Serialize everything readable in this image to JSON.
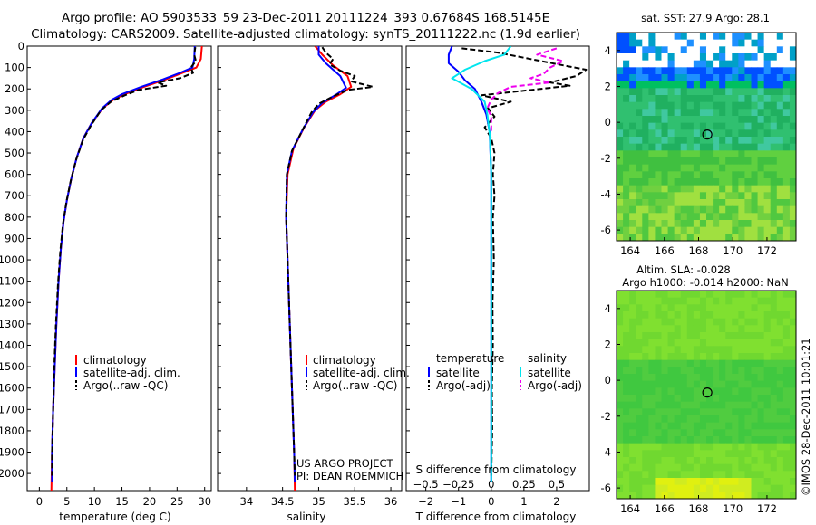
{
  "header": {
    "line1": "Argo profile: AO 5903533_59 23-Dec-2011 20111224_393 0.67684S 168.5145E",
    "line2": "Climatology: CARS2009. Satellite-adjusted climatology: synTS_20111222.nc (1.9d earlier)"
  },
  "colors": {
    "clim": "#ff0000",
    "sat": "#0000ff",
    "argo": "#000000",
    "sal_sat": "#00e5ee",
    "sal_argo": "#ee00ee"
  },
  "chart_data": [
    {
      "type": "line",
      "name": "temperature",
      "xlabel": "temperature (deg C)",
      "ylabel": "pressure",
      "xlim": [
        -2.2,
        31.2
      ],
      "ylim": [
        2080,
        0
      ],
      "xticks": [
        0,
        5,
        10,
        15,
        20,
        25,
        30
      ],
      "yticks": [
        0,
        100,
        200,
        300,
        400,
        500,
        600,
        700,
        800,
        900,
        1000,
        1100,
        1200,
        1300,
        1400,
        1500,
        1600,
        1700,
        1800,
        1900,
        2000
      ],
      "legend": [
        "climatology",
        "satellite-adj. clim.",
        "Argo(..raw -QC)"
      ],
      "series": [
        {
          "name": "climatology",
          "color": "clim",
          "dash": "",
          "points": [
            [
              29.5,
              0
            ],
            [
              29.3,
              60
            ],
            [
              28.5,
              100
            ],
            [
              26,
              125
            ],
            [
              23,
              155
            ],
            [
              19,
              190
            ],
            [
              15.5,
              225
            ],
            [
              13.5,
              250
            ],
            [
              11.5,
              290
            ],
            [
              9.5,
              360
            ],
            [
              8,
              430
            ],
            [
              6.8,
              520
            ],
            [
              5.8,
              620
            ],
            [
              5,
              720
            ],
            [
              4.4,
              820
            ],
            [
              3.9,
              950
            ],
            [
              3.5,
              1100
            ],
            [
              3.1,
              1300
            ],
            [
              2.8,
              1500
            ],
            [
              2.5,
              1700
            ],
            [
              2.3,
              1900
            ],
            [
              2.2,
              2080
            ]
          ]
        },
        {
          "name": "satellite-adj. clim.",
          "color": "sat",
          "dash": "",
          "points": [
            [
              28.2,
              0
            ],
            [
              28.1,
              60
            ],
            [
              27.8,
              100
            ],
            [
              25.5,
              125
            ],
            [
              22.5,
              155
            ],
            [
              18.5,
              190
            ],
            [
              15,
              225
            ],
            [
              13.2,
              250
            ],
            [
              11.4,
              290
            ],
            [
              9.5,
              360
            ],
            [
              8,
              430
            ],
            [
              6.8,
              520
            ],
            [
              5.8,
              620
            ],
            [
              5,
              720
            ],
            [
              4.4,
              820
            ],
            [
              3.9,
              950
            ],
            [
              3.5,
              1100
            ],
            [
              3.1,
              1300
            ],
            [
              2.8,
              1500
            ],
            [
              2.5,
              1700
            ],
            [
              2.3,
              1900
            ],
            [
              2.3,
              2040
            ]
          ]
        },
        {
          "name": "Argo(..raw -QC)",
          "color": "argo",
          "dash": "6,3",
          "points": [
            [
              28.3,
              5
            ],
            [
              28.1,
              40
            ],
            [
              28.4,
              70
            ],
            [
              27.5,
              100
            ],
            [
              27.9,
              125
            ],
            [
              25.5,
              150
            ],
            [
              21.5,
              170
            ],
            [
              23,
              185
            ],
            [
              18,
              205
            ],
            [
              15.5,
              230
            ],
            [
              13,
              260
            ],
            [
              11.2,
              300
            ],
            [
              9.4,
              370
            ],
            [
              7.9,
              440
            ],
            [
              6.7,
              530
            ],
            [
              5.7,
              630
            ],
            [
              4.9,
              730
            ],
            [
              4.3,
              830
            ],
            [
              3.8,
              960
            ],
            [
              3.4,
              1110
            ],
            [
              3.0,
              1310
            ],
            [
              2.7,
              1510
            ],
            [
              2.5,
              1710
            ],
            [
              2.3,
              1910
            ],
            [
              2.3,
              2010
            ]
          ]
        }
      ]
    },
    {
      "type": "line",
      "name": "salinity",
      "xlabel": "salinity",
      "xlim": [
        33.6,
        36.15
      ],
      "ylim": [
        2080,
        0
      ],
      "xticks": [
        34,
        34.5,
        35,
        35.5,
        36
      ],
      "xticklabels": [
        "34",
        "34.5",
        "35",
        "35.5",
        "36"
      ],
      "legend": [
        "climatology",
        "satellite-adj. clim.",
        "Argo(..raw -QC)"
      ],
      "annotation": [
        "US ARGO PROJECT",
        "PI: DEAN ROEMMICH"
      ],
      "series": [
        {
          "name": "climatology",
          "color": "clim",
          "dash": "",
          "points": [
            [
              34.95,
              0
            ],
            [
              35.05,
              40
            ],
            [
              35.2,
              90
            ],
            [
              35.4,
              140
            ],
            [
              35.45,
              190
            ],
            [
              35.3,
              225
            ],
            [
              35.1,
              260
            ],
            [
              34.95,
              300
            ],
            [
              34.8,
              380
            ],
            [
              34.65,
              480
            ],
            [
              34.57,
              600
            ],
            [
              34.55,
              800
            ],
            [
              34.57,
              1000
            ],
            [
              34.6,
              1300
            ],
            [
              34.63,
              1600
            ],
            [
              34.66,
              1900
            ],
            [
              34.67,
              2080
            ]
          ]
        },
        {
          "name": "satellite-adj. clim.",
          "color": "sat",
          "dash": "",
          "points": [
            [
              35.0,
              0
            ],
            [
              35.0,
              40
            ],
            [
              35.1,
              80
            ],
            [
              35.3,
              140
            ],
            [
              35.38,
              195
            ],
            [
              35.25,
              225
            ],
            [
              35.05,
              265
            ],
            [
              34.92,
              310
            ],
            [
              34.78,
              390
            ],
            [
              34.63,
              490
            ],
            [
              34.56,
              600
            ],
            [
              34.55,
              800
            ],
            [
              34.57,
              1000
            ],
            [
              34.6,
              1300
            ],
            [
              34.63,
              1600
            ],
            [
              34.66,
              1900
            ],
            [
              34.67,
              2040
            ]
          ]
        },
        {
          "name": "Argo(..raw -QC)",
          "color": "argo",
          "dash": "6,3",
          "points": [
            [
              35.05,
              5
            ],
            [
              35.1,
              30
            ],
            [
              35.2,
              60
            ],
            [
              35.15,
              85
            ],
            [
              35.3,
              115
            ],
            [
              35.5,
              140
            ],
            [
              35.45,
              165
            ],
            [
              35.75,
              190
            ],
            [
              35.4,
              205
            ],
            [
              35.2,
              235
            ],
            [
              35.0,
              270
            ],
            [
              34.9,
              310
            ],
            [
              34.78,
              390
            ],
            [
              34.63,
              490
            ],
            [
              34.56,
              600
            ],
            [
              34.55,
              800
            ],
            [
              34.57,
              1000
            ],
            [
              34.6,
              1300
            ],
            [
              34.63,
              1600
            ],
            [
              34.66,
              1900
            ],
            [
              34.67,
              2010
            ]
          ]
        }
      ]
    },
    {
      "type": "line",
      "name": "difference",
      "xlabel": "T difference from climatology",
      "xlabel_top": "S difference from climatology",
      "xlim": [
        -2.6,
        3.0
      ],
      "ylim": [
        2080,
        0
      ],
      "xticks": [
        -2,
        -1,
        0,
        1,
        2
      ],
      "xticklabels": [
        "−2",
        "−1",
        "0",
        "1",
        "2"
      ],
      "sticks": [
        -0.5,
        -0.25,
        0,
        0.25,
        0.5
      ],
      "sticklabels": [
        "−0.5",
        "−0.25",
        "0",
        "0.25",
        "0.5"
      ],
      "legend_t": [
        "temperature",
        "satellite",
        "Argo(-adj)"
      ],
      "legend_s": [
        "salinity",
        "satellite",
        "Argo(-adj)"
      ],
      "series": [
        {
          "name": "T satellite",
          "color": "sat",
          "dash": "",
          "points": [
            [
              -1.2,
              0
            ],
            [
              -1.3,
              40
            ],
            [
              -1.3,
              80
            ],
            [
              -1.0,
              120
            ],
            [
              -0.8,
              160
            ],
            [
              -0.5,
              200
            ],
            [
              -0.3,
              260
            ],
            [
              -0.15,
              320
            ],
            [
              -0.05,
              400
            ],
            [
              0,
              600
            ],
            [
              0,
              1000
            ],
            [
              0,
              1500
            ],
            [
              0,
              2040
            ]
          ]
        },
        {
          "name": "T Argo(-adj)",
          "color": "argo",
          "dash": "6,3",
          "points": [
            [
              -0.9,
              10
            ],
            [
              0.2,
              30
            ],
            [
              1.2,
              60
            ],
            [
              2.2,
              90
            ],
            [
              2.9,
              110
            ],
            [
              2.6,
              140
            ],
            [
              1.8,
              170
            ],
            [
              2.4,
              185
            ],
            [
              0.9,
              210
            ],
            [
              -0.3,
              230
            ],
            [
              0.6,
              260
            ],
            [
              -0.1,
              290
            ],
            [
              0.1,
              330
            ],
            [
              -0.2,
              380
            ],
            [
              0.0,
              430
            ],
            [
              0.1,
              500
            ],
            [
              0.05,
              600
            ],
            [
              0.1,
              700
            ],
            [
              0.05,
              800
            ],
            [
              0.08,
              1000
            ],
            [
              0.04,
              1200
            ],
            [
              0.05,
              1400
            ],
            [
              0.02,
              1600
            ],
            [
              0.03,
              1800
            ],
            [
              0.0,
              2010
            ]
          ]
        },
        {
          "name": "S satellite",
          "color": "sal_sat",
          "dash": "",
          "points": [
            [
              0.15,
              0
            ],
            [
              0.1,
              40
            ],
            [
              -0.05,
              70
            ],
            [
              -0.2,
              110
            ],
            [
              -0.3,
              150
            ],
            [
              -0.15,
              200
            ],
            [
              -0.05,
              260
            ],
            [
              -0.03,
              320
            ],
            [
              -0.01,
              420
            ],
            [
              0,
              600
            ],
            [
              0,
              1000
            ],
            [
              0,
              1500
            ],
            [
              0,
              2040
            ]
          ]
        },
        {
          "name": "S Argo(-adj)",
          "color": "sal_argo",
          "dash": "6,3",
          "points": [
            [
              0.5,
              10
            ],
            [
              0.35,
              40
            ],
            [
              0.55,
              70
            ],
            [
              0.45,
              100
            ],
            [
              0.4,
              130
            ],
            [
              0.3,
              150
            ],
            [
              0.45,
              170
            ],
            [
              0.15,
              190
            ],
            [
              0.05,
              220
            ],
            [
              0.0,
              250
            ],
            [
              -0.03,
              290
            ],
            [
              0.0,
              330
            ],
            [
              0.0,
              400
            ]
          ]
        }
      ]
    }
  ],
  "maps": {
    "sst": {
      "title": "sat. SST: 27.9 Argo: 28.1",
      "xticks": [
        "164",
        "166",
        "168",
        "170",
        "172"
      ],
      "yticks": [
        "4",
        "2",
        "0",
        "-2",
        "-4",
        "-6"
      ],
      "marker": {
        "lon": 168.51,
        "lat": -0.68
      }
    },
    "sla": {
      "title1": "Altim. SLA: -0.028",
      "title2": "Argo h1000: -0.014 h2000: NaN",
      "xticks": [
        "164",
        "166",
        "168",
        "170",
        "172"
      ],
      "yticks": [
        "4",
        "2",
        "0",
        "-2",
        "-4",
        "-6"
      ],
      "marker": {
        "lon": 168.51,
        "lat": -0.68
      }
    }
  },
  "footer": {
    "stamp": "©IMOS 28-Dec-2011 10:01:21"
  }
}
